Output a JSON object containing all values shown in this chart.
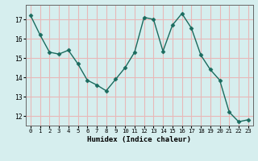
{
  "x": [
    0,
    1,
    2,
    3,
    4,
    5,
    6,
    7,
    8,
    9,
    10,
    11,
    12,
    13,
    14,
    15,
    16,
    17,
    18,
    19,
    20,
    21,
    22,
    23
  ],
  "y": [
    17.2,
    16.2,
    15.3,
    15.2,
    15.4,
    14.7,
    13.85,
    13.6,
    13.3,
    13.9,
    14.5,
    15.3,
    17.1,
    17.0,
    15.35,
    16.7,
    17.3,
    16.55,
    15.15,
    14.4,
    13.85,
    12.2,
    11.7,
    11.8
  ],
  "line_color": "#1a6b5e",
  "marker": "D",
  "marker_size": 2.5,
  "bg_color": "#d6eeee",
  "grid_color": "#e8b8b8",
  "xlabel": "Humidex (Indice chaleur)",
  "ylim": [
    11.5,
    17.75
  ],
  "xlim": [
    -0.5,
    23.5
  ],
  "yticks": [
    12,
    13,
    14,
    15,
    16,
    17
  ],
  "xticks": [
    0,
    1,
    2,
    3,
    4,
    5,
    6,
    7,
    8,
    9,
    10,
    11,
    12,
    13,
    14,
    15,
    16,
    17,
    18,
    19,
    20,
    21,
    22,
    23
  ]
}
